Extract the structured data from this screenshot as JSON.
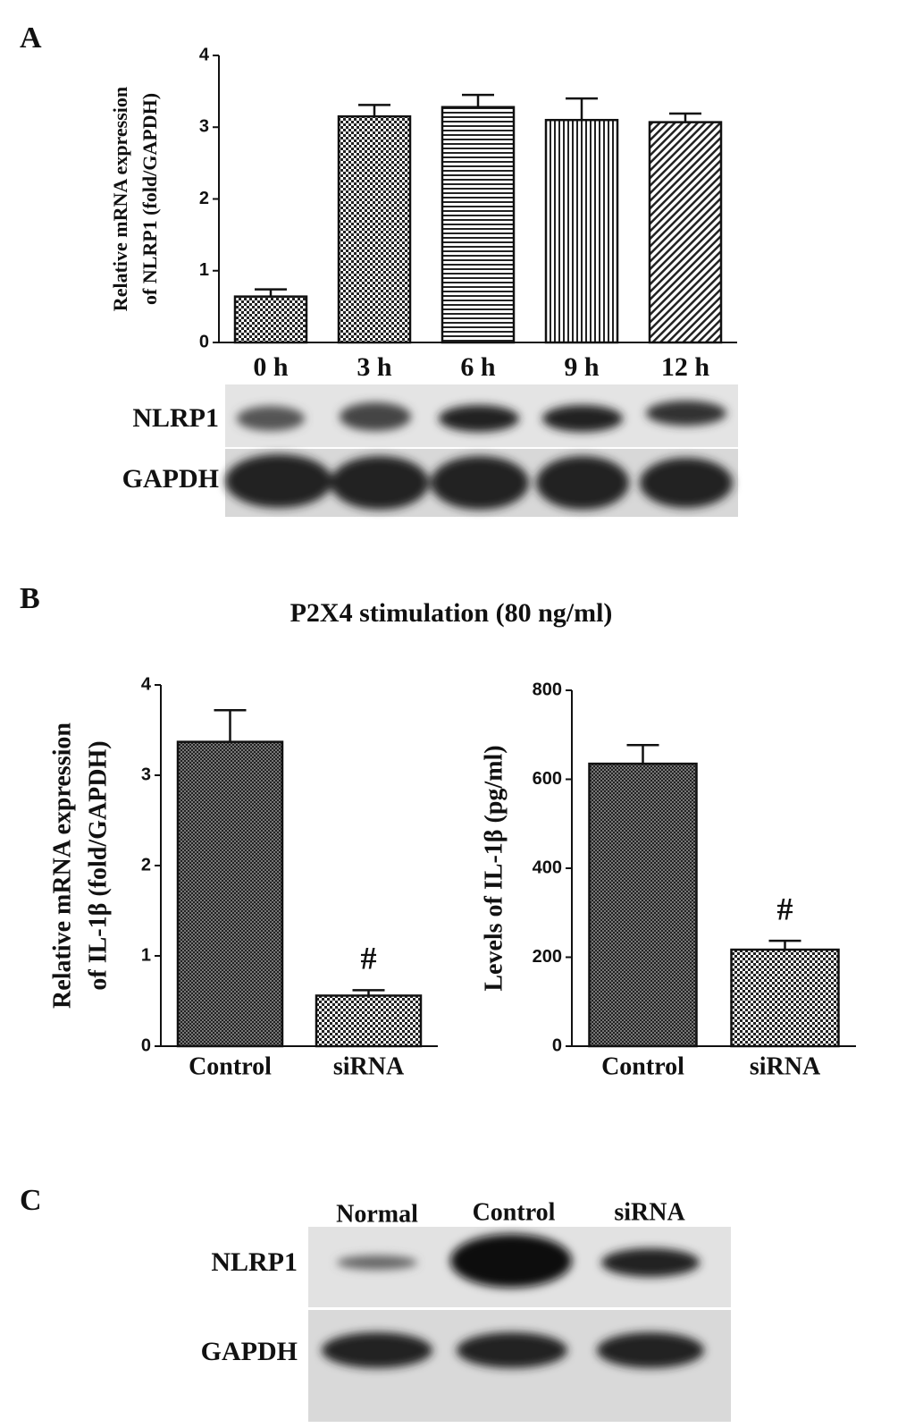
{
  "figure": {
    "panels": [
      "A",
      "B",
      "C"
    ],
    "title_b": "P2X4 stimulation (80 ng/ml)",
    "blot_a": {
      "rows": [
        "NLRP1",
        "GAPDH"
      ]
    },
    "blot_c": {
      "lanes": [
        "Normal",
        "Control",
        "siRNA"
      ],
      "rows": [
        "NLRP1",
        "GAPDH"
      ]
    }
  },
  "chart_data": [
    {
      "type": "bar",
      "categories": [
        "0 h",
        "3 h",
        "6 h",
        "9 h",
        "12 h"
      ],
      "values": [
        0.64,
        3.15,
        3.28,
        3.1,
        3.07
      ],
      "errors": [
        0.1,
        0.16,
        0.17,
        0.3,
        0.12
      ],
      "patterns": [
        "checker",
        "checker",
        "hlines",
        "vlines",
        "diag"
      ],
      "color": "#111",
      "ylabel": [
        "Relative mRNA expression",
        "of NLRP1 (fold/GAPDH)"
      ],
      "ylim": [
        0,
        4
      ],
      "yticks": [
        0,
        1,
        2,
        3,
        4
      ]
    },
    {
      "type": "bar",
      "categories": [
        "Control",
        "siRNA"
      ],
      "values": [
        3.37,
        0.56
      ],
      "errors": [
        0.35,
        0.06
      ],
      "patterns": [
        "fine",
        "checker"
      ],
      "color": "#111",
      "ylabel": [
        "Relative mRNA expression",
        "of IL-1β (fold/GAPDH)"
      ],
      "ylim": [
        0,
        4
      ],
      "yticks": [
        0,
        1,
        2,
        3,
        4
      ],
      "annotations": [
        {
          "category": "siRNA",
          "text": "#"
        }
      ]
    },
    {
      "type": "bar",
      "categories": [
        "Control",
        "siRNA"
      ],
      "values": [
        635,
        217
      ],
      "errors": [
        42,
        20
      ],
      "patterns": [
        "fine",
        "checker"
      ],
      "color": "#111",
      "ylabel": [
        "Levels of IL-1β (pg/ml)"
      ],
      "ylim": [
        0,
        800
      ],
      "yticks": [
        0,
        200,
        400,
        600,
        800
      ],
      "annotations": [
        {
          "category": "siRNA",
          "text": "#"
        }
      ]
    }
  ]
}
